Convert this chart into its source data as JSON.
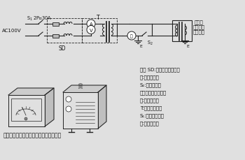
{
  "bg_color": "#e0e0e0",
  "line_color": "#222222",
  "text_color": "#111111",
  "legend_lines": [
    "記号 SD:スライドトランス",
    "Ⓥ:一次電圧計",
    "S₂:二次電流計",
    "　　短絡用スイッチ",
    "Ⓐ:一次電流計",
    "T:試験用変圧器",
    "S₁:電源スイッチ",
    "Ⓝ:充電電流計"
  ],
  "bottom_caption": "充電電流計（左）と試験用変圧器（右）"
}
